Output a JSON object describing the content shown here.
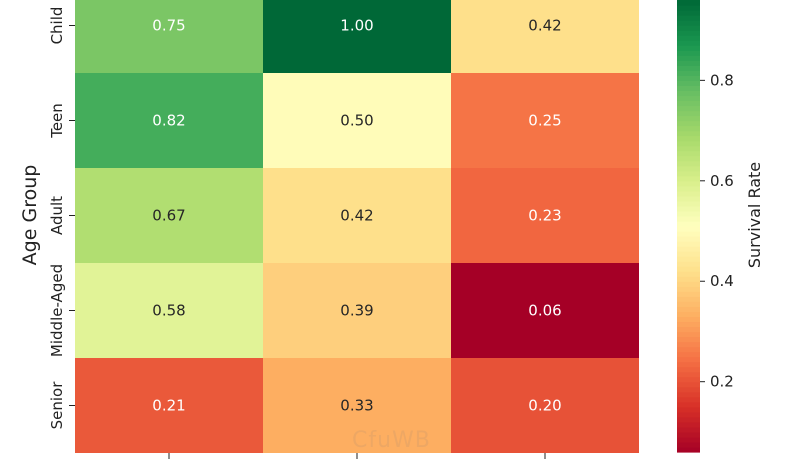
{
  "chart_data": {
    "type": "heatmap",
    "title": "",
    "ylabel": "Age Group",
    "xlabel": "",
    "rows": [
      "Child",
      "Teen",
      "Adult",
      "Middle-Aged",
      "Senior"
    ],
    "columns": [
      "",
      "",
      ""
    ],
    "values": [
      [
        0.75,
        1.0,
        0.42
      ],
      [
        0.82,
        0.5,
        0.25
      ],
      [
        0.67,
        0.42,
        0.23
      ],
      [
        0.58,
        0.39,
        0.06
      ],
      [
        0.21,
        0.33,
        0.2
      ]
    ],
    "value_format": "0.00",
    "colormap": "RdYlGn",
    "colorbar": {
      "label": "Survival Rate",
      "ticks": [
        0.2,
        0.4,
        0.6,
        0.8
      ],
      "tick_labels": [
        "0.2",
        "0.4",
        "0.6",
        "0.8"
      ],
      "range": [
        0.06,
        0.96
      ]
    },
    "grid": false,
    "legend_position": "right"
  }
}
